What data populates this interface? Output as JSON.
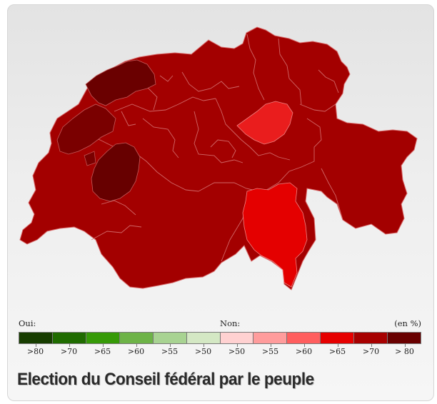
{
  "map": {
    "regions": [
      {
        "name": "main",
        "share": "> 70",
        "color": "#a30000"
      },
      {
        "name": "jura",
        "share": "> 80",
        "color": "#6a0000"
      },
      {
        "name": "neuchatel",
        "share": "> 80",
        "color": "#7a0000"
      },
      {
        "name": "fribourg",
        "share": "> 80",
        "color": "#670000"
      },
      {
        "name": "schwyz",
        "share": "> 65",
        "color": "#ea1d1d"
      },
      {
        "name": "ticino",
        "share": "> 65",
        "color": "#e40000"
      }
    ]
  },
  "legend": {
    "yes_label": "Oui:",
    "no_label": "Non:",
    "unit_label": "(en %)",
    "bins": [
      {
        "label": ">80",
        "color": "#173d00"
      },
      {
        "label": ">70",
        "color": "#1f6b00"
      },
      {
        "label": ">65",
        "color": "#369a07"
      },
      {
        "label": ">60",
        "color": "#6db347"
      },
      {
        "label": ">55",
        "color": "#a8d392"
      },
      {
        "label": ">50",
        "color": "#d4e8c4"
      },
      {
        "label": ">50",
        "color": "#ffd1d1"
      },
      {
        "label": ">55",
        "color": "#ff9c9c"
      },
      {
        "label": ">60",
        "color": "#ff5e5e"
      },
      {
        "label": ">65",
        "color": "#e60000"
      },
      {
        "label": ">70",
        "color": "#a70000"
      },
      {
        "label": "> 80",
        "color": "#690000"
      }
    ]
  },
  "title": "Election du Conseil fédéral par le peuple"
}
